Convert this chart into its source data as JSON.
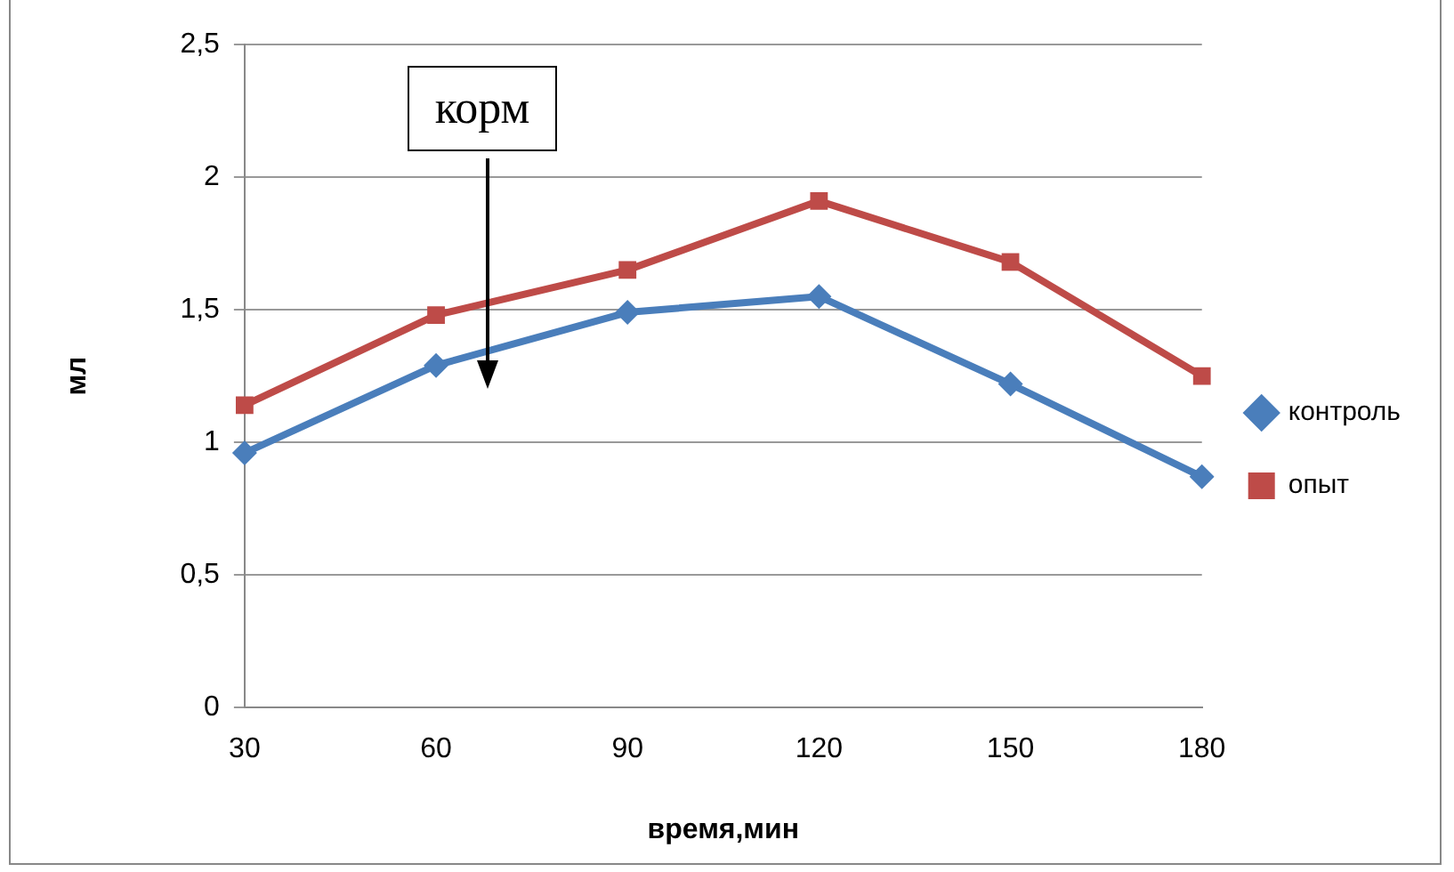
{
  "chart_data": {
    "type": "line",
    "xlabel": "время,мин",
    "ylabel": "мл",
    "categories": [
      "30",
      "60",
      "90",
      "120",
      "150",
      "180"
    ],
    "series": [
      {
        "name": "контроль",
        "color": "#4a7ebb",
        "marker": "diamond",
        "values": [
          0.96,
          1.29,
          1.49,
          1.55,
          1.22,
          0.87
        ]
      },
      {
        "name": "опыт",
        "color": "#be4b48",
        "marker": "square",
        "values": [
          1.14,
          1.48,
          1.65,
          1.91,
          1.68,
          1.25
        ]
      }
    ],
    "ylim": [
      0,
      2.5
    ],
    "yticks": [
      0,
      {
        "value": 0.5,
        "label": "0,5"
      },
      1,
      {
        "value": 1.5,
        "label": "1,5"
      },
      2,
      {
        "value": 2.5,
        "label": "2,5"
      }
    ],
    "grid": "y",
    "legend": "right",
    "annotations": [
      "корм"
    ]
  }
}
